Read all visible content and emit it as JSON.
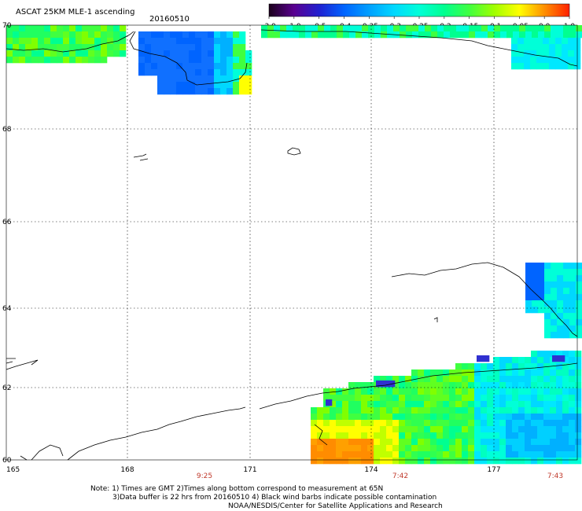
{
  "header": {
    "title": "ASCAT 25KM MLE-1 ascending",
    "date": "20160510"
  },
  "colorbar": {
    "labels": [
      "-3.0",
      "-1.0",
      "-0.5",
      "-0.4",
      "-0.35",
      "-0.3",
      "-0.25",
      "-0.2",
      "-0.15",
      "-0.1",
      "-0.05",
      "0.0",
      "1.0"
    ],
    "colors": [
      "#1a001a",
      "#5a0090",
      "#2020d0",
      "#0064ff",
      "#00a0ff",
      "#00d8ff",
      "#00ffd8",
      "#00ff90",
      "#40ff40",
      "#a0ff00",
      "#ffff00",
      "#ff9000",
      "#ff2000"
    ]
  },
  "axes": {
    "lat_labels": [
      "70",
      "68",
      "66",
      "64",
      "62",
      "60"
    ],
    "lon_labels": [
      "165",
      "168",
      "171",
      "174",
      "177"
    ]
  },
  "pass_times": [
    "9:25",
    "7:42",
    "7:43"
  ],
  "notes": {
    "line1": "Note: 1) Times are GMT 2)Times along bottom correspond to measurement at 65N",
    "line2": "3)Data buffer is 22 hrs from 20160510 4) Black wind barbs indicate possible contamination",
    "line3": "NOAA/NESDIS/Center for Satellite Applications and Research"
  }
}
